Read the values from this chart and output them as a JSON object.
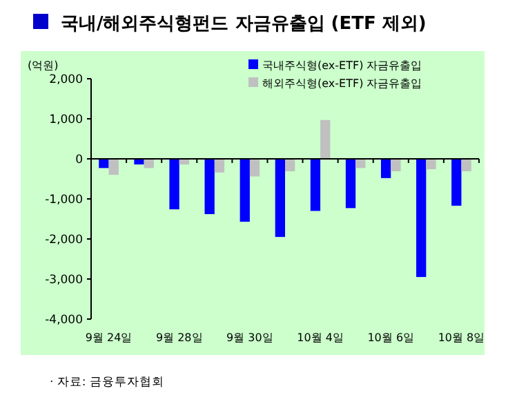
{
  "chart_data": {
    "type": "bar",
    "title": "국내/해외주식형펀드 자금유출입 (ETF 제외)",
    "ylabel": "(억원)",
    "categories": [
      "9월 24일",
      null,
      "9월 28일",
      null,
      "9월 30일",
      null,
      "10월 4일",
      null,
      "10월 6일",
      null,
      "10월 8일"
    ],
    "series": [
      {
        "name": "국내주식형(ex-ETF) 자금유출입",
        "color": "#0000ff",
        "values": [
          -230,
          -140,
          -1260,
          -1380,
          -1570,
          -1950,
          -1300,
          -1230,
          -480,
          -2950,
          -1170
        ]
      },
      {
        "name": "해외주식형(ex-ETF) 자금유출입",
        "color": "#c0c0c0",
        "values": [
          -400,
          -230,
          -140,
          -340,
          -440,
          -310,
          970,
          -230,
          -310,
          -260,
          -310
        ]
      }
    ],
    "ylim": [
      -4000,
      2000
    ],
    "yticks": [
      {
        "value": 2000,
        "label": "2,000"
      },
      {
        "value": 1000,
        "label": "1,000"
      },
      {
        "value": 0,
        "label": "0"
      },
      {
        "value": -1000,
        "label": "-1,000"
      },
      {
        "value": -2000,
        "label": "-2,000"
      },
      {
        "value": -3000,
        "label": "-3,000"
      },
      {
        "value": -4000,
        "label": "-4,000"
      }
    ],
    "legend": "top right",
    "annotations": [
      "· 자료: 금융투자협회"
    ]
  }
}
